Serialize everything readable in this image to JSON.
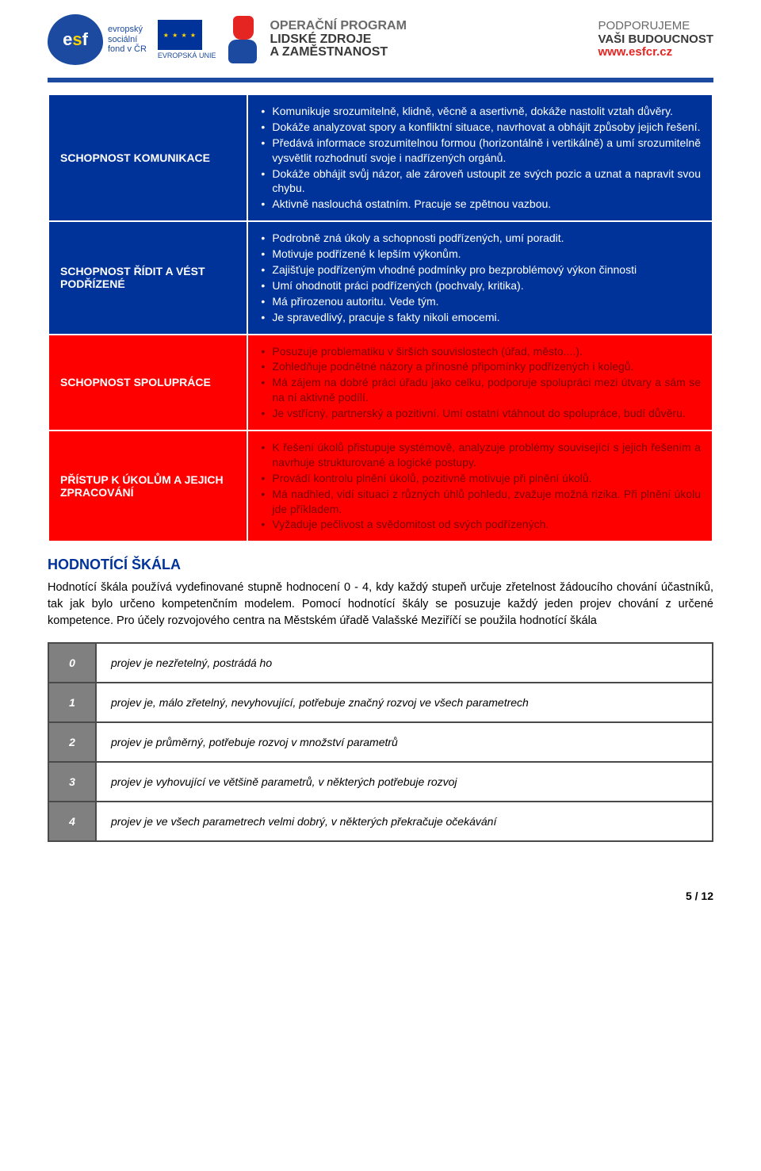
{
  "header": {
    "esf_label_lines": [
      "evropský",
      "sociální",
      "fond v ČR"
    ],
    "eu_label": "EVROPSKÁ UNIE",
    "op_program_lines": [
      "OPERAČNÍ PROGRAM",
      "LIDSKÉ ZDROJE",
      "A ZAMĚSTNANOST"
    ],
    "support_lines": [
      "PODPORUJEME",
      "VAŠI BUDOUCNOST"
    ],
    "support_url": "www.esfcr.cz"
  },
  "colors": {
    "brand_blue": "#003399",
    "brand_red": "#ff0000",
    "grey_cell": "#808080",
    "grey_border": "#4a4a4a",
    "red_dark_text": "#7a0000",
    "link_red": "#e52521"
  },
  "competencies": [
    {
      "label": "SCHOPNOST KOMUNIKACE",
      "bg": "blue",
      "text_color": "white",
      "bullets": [
        "Komunikuje srozumitelně, klidně, věcně a asertivně, dokáže nastolit vztah důvěry.",
        "Dokáže analyzovat spory a konfliktní situace, navrhovat a obhájit způsoby jejich řešení.",
        "Předává informace srozumitelnou formou (horizontálně i vertikálně) a umí srozumitelně vysvětlit rozhodnutí svoje i nadřízených orgánů.",
        "Dokáže obhájit svůj názor, ale zároveň ustoupit ze svých pozic a uznat a napravit svou chybu.",
        "Aktivně naslouchá ostatním. Pracuje se zpětnou vazbou."
      ]
    },
    {
      "label": "SCHOPNOST ŘÍDIT A VÉST PODŘÍZENÉ",
      "bg": "blue",
      "text_color": "white",
      "bullets": [
        "Podrobně zná úkoly a schopnosti podřízených, umí poradit.",
        "Motivuje podřízené k lepším výkonům.",
        "Zajišťuje podřízeným vhodné podmínky pro bezproblémový výkon činnosti",
        "Umí ohodnotit práci podřízených (pochvaly, kritika).",
        "Má přirozenou autoritu. Vede tým.",
        "Je spravedlivý, pracuje s fakty nikoli emocemi."
      ]
    },
    {
      "label": "SCHOPNOST SPOLUPRÁCE",
      "bg": "red",
      "text_color": "red_dark",
      "bullets": [
        "Posuzuje problematiku  v širších souvislostech (úřad, město....).",
        "Zohledňuje podnětné názory a přínosné připomínky podřízených i kolegů.",
        "Má zájem na dobré práci úřadu jako celku, podporuje spolupráci mezi útvary a sám se na ní aktivně podílí.",
        "Je vstřícný, partnerský a pozitivní. Umí ostatní vtáhnout do spolupráce, budí důvěru."
      ]
    },
    {
      "label": "PŘÍSTUP K ÚKOLŮM A JEJICH ZPRACOVÁNÍ",
      "bg": "red",
      "text_color": "red_dark",
      "bullets": [
        "K řešení úkolů přistupuje systémově, analyzuje  problémy související s jejich řešením a navrhuje strukturované a logické postupy.",
        "Provádí kontrolu plnění úkolů, pozitivně motivuje při plnění úkolů.",
        "Má nadhled, vidí situaci z různých úhlů pohledu, zvažuje možná rizika. Při plnění úkolu jde příkladem.",
        "Vyžaduje pečlivost a svědomitost od svých podřízených."
      ]
    }
  ],
  "scale_section": {
    "heading": "HODNOTÍCÍ ŠKÁLA",
    "paragraph": "Hodnotící škála používá vydefinované stupně hodnocení 0 - 4, kdy každý stupeň určuje zřetelnost žádoucího chování účastníků, tak jak bylo určeno kompetenčním modelem. Pomocí hodnotící škály se posuzuje každý jeden projev chování z určené kompetence. Pro účely rozvojového centra na Městském úřadě Valašské Meziříčí se použila hodnotící škála"
  },
  "scale_rows": [
    {
      "n": "0",
      "desc": "projev je nezřetelný, postrádá ho"
    },
    {
      "n": "1",
      "desc": "projev je, málo zřetelný, nevyhovující, potřebuje značný rozvoj ve všech parametrech"
    },
    {
      "n": "2",
      "desc": "projev je průměrný, potřebuje rozvoj v množství parametrů"
    },
    {
      "n": "3",
      "desc": "projev je vyhovující ve většině parametrů, v některých potřebuje rozvoj"
    },
    {
      "n": "4",
      "desc": "projev je ve všech parametrech velmi dobrý, v některých překračuje očekávání"
    }
  ],
  "page_number": "5 / 12"
}
